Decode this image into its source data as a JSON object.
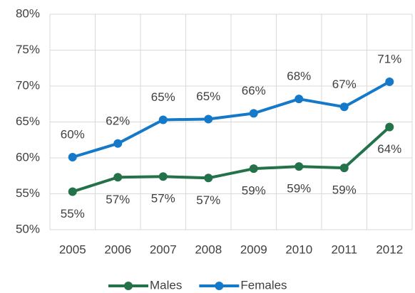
{
  "chart_data": {
    "type": "line",
    "categories": [
      "2005",
      "2006",
      "2007",
      "2008",
      "2009",
      "2010",
      "2011",
      "2012"
    ],
    "series": [
      {
        "name": "Males",
        "color": "#23724a",
        "values": [
          55.3,
          57.3,
          57.4,
          57.2,
          58.5,
          58.8,
          58.6,
          64.3
        ],
        "value_labels": [
          "55%",
          "57%",
          "57%",
          "57%",
          "59%",
          "59%",
          "59%",
          "64%"
        ]
      },
      {
        "name": "Females",
        "color": "#1479c9",
        "values": [
          60.1,
          62.0,
          65.3,
          65.4,
          66.2,
          68.2,
          67.1,
          70.6
        ],
        "value_labels": [
          "60%",
          "62%",
          "65%",
          "65%",
          "66%",
          "68%",
          "67%",
          "71%"
        ]
      }
    ],
    "ylim": [
      50,
      80
    ],
    "yticks": [
      {
        "value": 50,
        "label": "50%"
      },
      {
        "value": 55,
        "label": "55%"
      },
      {
        "value": 60,
        "label": "60%"
      },
      {
        "value": 65,
        "label": "65%"
      },
      {
        "value": 70,
        "label": "70%"
      },
      {
        "value": 75,
        "label": "75%"
      },
      {
        "value": 80,
        "label": "80%"
      }
    ],
    "grid": true,
    "legend": "bottom"
  }
}
